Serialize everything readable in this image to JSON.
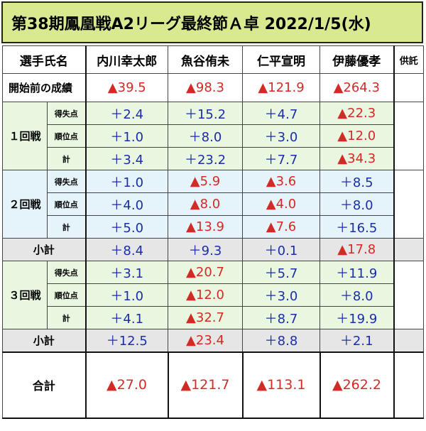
{
  "title": "第38期鳳凰戦A2リーグ最終節Ａ卓 2022/1/5(水)",
  "header": {
    "name_label": "選手氏名",
    "players": [
      "内川幸太郎",
      "魚谷侑未",
      "仁平宣明",
      "伊藤優孝"
    ],
    "kyotaku": "供託"
  },
  "rows": {
    "before_label": "開始前の成績",
    "before": [
      "▲39.5",
      "▲98.3",
      "▲121.9",
      "▲264.3"
    ],
    "round1_label": "１回戦",
    "round2_label": "２回戦",
    "round3_label": "３回戦",
    "score_label": "得失点",
    "rank_label": "順位点",
    "sum_label": "計",
    "subtotal_label": "小計",
    "total_label": "合計",
    "r1_score": [
      "＋2.4",
      "＋15.2",
      "＋4.7",
      "▲22.3"
    ],
    "r1_rank": [
      "＋1.0",
      "＋8.0",
      "＋3.0",
      "▲12.0"
    ],
    "r1_sum": [
      "＋3.4",
      "＋23.2",
      "＋7.7",
      "▲34.3"
    ],
    "r2_score": [
      "＋1.0",
      "▲5.9",
      "▲3.6",
      "＋8.5"
    ],
    "r2_rank": [
      "＋4.0",
      "▲8.0",
      "▲4.0",
      "＋8.0"
    ],
    "r2_sum": [
      "＋5.0",
      "▲13.9",
      "▲7.6",
      "＋16.5"
    ],
    "sub2": [
      "＋8.4",
      "＋9.3",
      "＋0.1",
      "▲17.8"
    ],
    "r3_score": [
      "＋3.1",
      "▲20.7",
      "＋5.7",
      "＋11.9"
    ],
    "r3_rank": [
      "＋1.0",
      "▲12.0",
      "＋3.0",
      "＋8.0"
    ],
    "r3_sum": [
      "＋4.1",
      "▲32.7",
      "＋8.7",
      "＋19.9"
    ],
    "sub3": [
      "＋12.5",
      "▲23.4",
      "＋8.8",
      "＋2.1"
    ],
    "total": [
      "▲27.0",
      "▲121.7",
      "▲113.1",
      "▲262.2"
    ]
  },
  "colors": {
    "title_bg": "#d8e98f",
    "round_green": "#e9f6e0",
    "round_blue": "#e5f4fb",
    "subtotal_gray": "#e6e6e6",
    "positive": "#1b2ea8",
    "negative": "#d42a26"
  }
}
